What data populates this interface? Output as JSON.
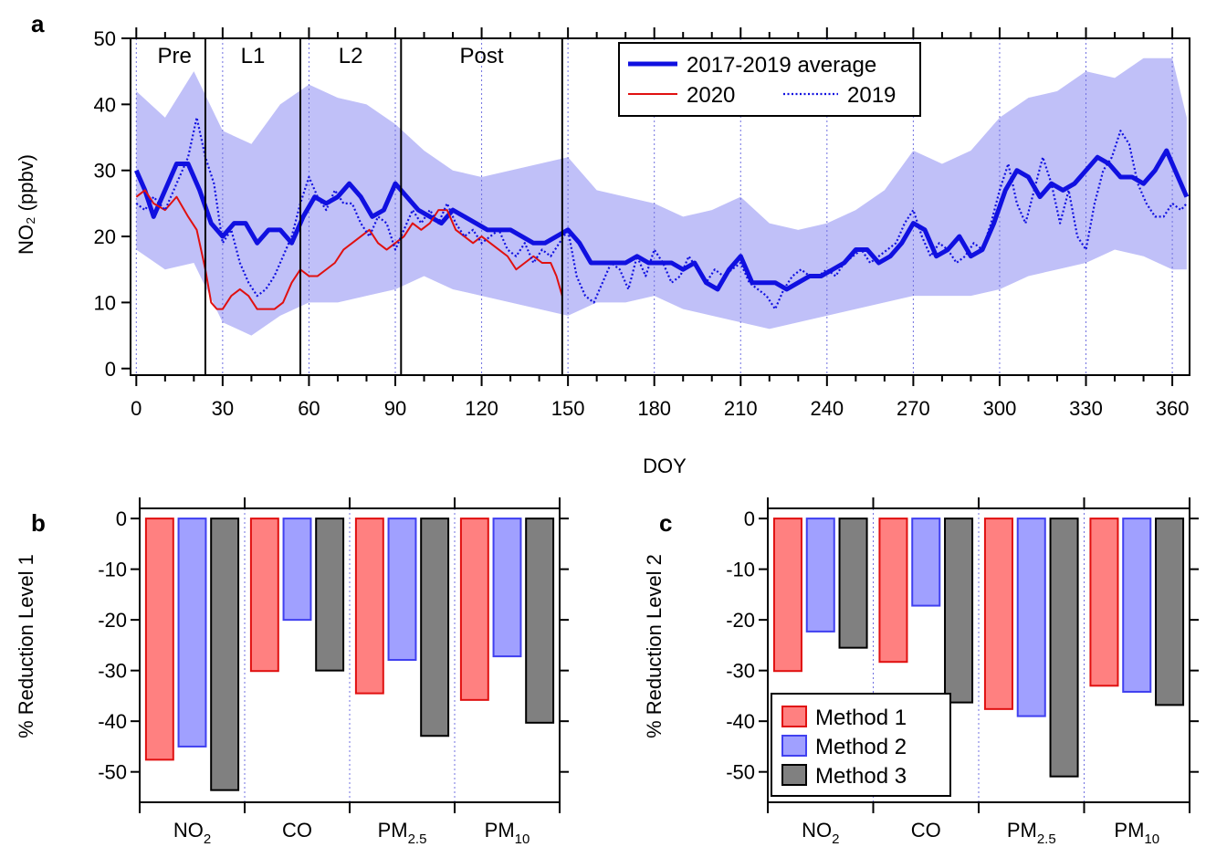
{
  "chart_data": [
    {
      "panel": "a",
      "type": "line",
      "xlabel": "DOY",
      "ylabel": "NO₂ (ppbv)",
      "xlim": [
        -2,
        366
      ],
      "ylim": [
        -1,
        50
      ],
      "xticks": [
        0,
        30,
        60,
        90,
        120,
        150,
        180,
        210,
        240,
        270,
        300,
        330,
        360
      ],
      "yticks": [
        0,
        10,
        20,
        30,
        40,
        50
      ],
      "period_boundaries": [
        24,
        57,
        92,
        148
      ],
      "periods": [
        "Pre",
        "L1",
        "L2",
        "Post"
      ],
      "grid": "monthly dotted vertical lines",
      "legend": "top-center",
      "band": {
        "name": "2017-2019 range",
        "x": [
          0,
          10,
          20,
          30,
          40,
          50,
          60,
          70,
          80,
          90,
          100,
          110,
          120,
          130,
          140,
          150,
          160,
          170,
          180,
          190,
          200,
          210,
          220,
          230,
          240,
          250,
          260,
          270,
          280,
          290,
          300,
          310,
          320,
          330,
          340,
          350,
          360,
          365
        ],
        "upper": [
          42,
          38,
          45,
          36,
          34,
          40,
          43,
          41,
          40,
          37,
          33,
          30,
          29,
          30,
          31,
          32,
          27,
          26,
          25,
          23,
          24,
          26,
          22,
          21,
          22,
          24,
          27,
          33,
          31,
          33,
          38,
          41,
          42,
          45,
          44,
          47,
          47,
          38
        ],
        "lower": [
          18,
          15,
          16,
          7,
          5,
          8,
          10,
          10,
          11,
          12,
          14,
          12,
          11,
          10,
          9,
          8,
          10,
          10,
          11,
          9,
          8,
          7,
          6,
          7,
          8,
          9,
          10,
          11,
          11,
          11,
          12,
          14,
          15,
          16,
          18,
          17,
          15,
          15
        ]
      },
      "series": [
        {
          "name": "2017-2019 average",
          "color": "#1010e0",
          "x": [
            0,
            3,
            6,
            10,
            14,
            18,
            22,
            26,
            30,
            34,
            38,
            42,
            46,
            50,
            54,
            58,
            62,
            66,
            70,
            74,
            78,
            82,
            86,
            90,
            94,
            98,
            102,
            106,
            110,
            114,
            118,
            122,
            126,
            130,
            134,
            138,
            142,
            146,
            150,
            154,
            158,
            162,
            166,
            170,
            174,
            178,
            182,
            186,
            190,
            194,
            198,
            202,
            206,
            210,
            214,
            218,
            222,
            226,
            230,
            234,
            238,
            242,
            246,
            250,
            254,
            258,
            262,
            266,
            270,
            274,
            278,
            282,
            286,
            290,
            294,
            298,
            302,
            306,
            310,
            314,
            318,
            322,
            326,
            330,
            334,
            338,
            342,
            346,
            350,
            354,
            358,
            362,
            365
          ],
          "y": [
            30,
            27,
            23,
            27,
            31,
            31,
            27,
            22,
            20,
            22,
            22,
            19,
            21,
            21,
            19,
            23,
            26,
            25,
            26,
            28,
            26,
            23,
            24,
            28,
            26,
            24,
            23,
            22,
            24,
            23,
            22,
            21,
            21,
            21,
            20,
            19,
            19,
            20,
            21,
            19,
            16,
            16,
            16,
            16,
            17,
            16,
            16,
            16,
            15,
            16,
            13,
            12,
            15,
            17,
            13,
            13,
            13,
            12,
            13,
            14,
            14,
            15,
            16,
            18,
            18,
            16,
            17,
            19,
            22,
            21,
            17,
            18,
            20,
            17,
            18,
            22,
            27,
            30,
            29,
            26,
            28,
            27,
            28,
            30,
            32,
            31,
            29,
            29,
            28,
            30,
            33,
            29,
            26
          ]
        },
        {
          "name": "2020",
          "color": "#e01010",
          "x": [
            0,
            3,
            6,
            10,
            14,
            18,
            21,
            24,
            26,
            28,
            30,
            33,
            36,
            39,
            42,
            45,
            48,
            51,
            54,
            57,
            60,
            63,
            66,
            69,
            72,
            75,
            78,
            81,
            84,
            87,
            90,
            93,
            96,
            99,
            102,
            105,
            108,
            111,
            114,
            117,
            120,
            123,
            126,
            129,
            132,
            135,
            138,
            141,
            144,
            146,
            148
          ],
          "y": [
            26,
            27,
            25,
            24,
            26,
            23,
            21,
            15,
            10,
            9,
            9,
            11,
            12,
            11,
            9,
            9,
            9,
            10,
            13,
            15,
            14,
            14,
            15,
            16,
            18,
            19,
            20,
            21,
            19,
            18,
            19,
            20,
            22,
            21,
            22,
            24,
            24,
            21,
            20,
            19,
            20,
            19,
            18,
            17,
            15,
            16,
            17,
            16,
            16,
            14,
            11
          ]
        },
        {
          "name": "2019",
          "color": "#1010e0",
          "x": [
            0,
            3,
            6,
            10,
            14,
            18,
            21,
            24,
            27,
            30,
            33,
            36,
            39,
            42,
            45,
            48,
            51,
            54,
            57,
            60,
            63,
            66,
            69,
            72,
            75,
            78,
            81,
            84,
            87,
            90,
            93,
            96,
            99,
            102,
            105,
            108,
            111,
            114,
            117,
            120,
            123,
            126,
            129,
            132,
            135,
            138,
            141,
            144,
            147,
            150,
            153,
            156,
            159,
            162,
            165,
            168,
            171,
            174,
            177,
            180,
            183,
            186,
            189,
            192,
            195,
            198,
            201,
            204,
            207,
            210,
            213,
            216,
            219,
            222,
            225,
            228,
            231,
            234,
            237,
            240,
            243,
            246,
            249,
            252,
            255,
            258,
            261,
            264,
            267,
            270,
            273,
            276,
            279,
            282,
            285,
            288,
            291,
            294,
            297,
            300,
            303,
            306,
            309,
            312,
            315,
            318,
            321,
            324,
            327,
            330,
            333,
            336,
            339,
            342,
            345,
            348,
            351,
            354,
            357,
            360,
            363,
            365
          ],
          "y": [
            25,
            24,
            26,
            24,
            28,
            32,
            38,
            32,
            28,
            19,
            21,
            16,
            13,
            11,
            12,
            14,
            17,
            20,
            25,
            29,
            26,
            24,
            27,
            25,
            25,
            22,
            20,
            23,
            22,
            18,
            21,
            24,
            22,
            24,
            22,
            25,
            22,
            20,
            21,
            19,
            20,
            21,
            18,
            17,
            19,
            16,
            18,
            17,
            19,
            21,
            14,
            11,
            10,
            13,
            16,
            15,
            12,
            17,
            14,
            18,
            16,
            13,
            14,
            17,
            15,
            13,
            15,
            14,
            15,
            16,
            13,
            12,
            11,
            9,
            12,
            14,
            15,
            14,
            14,
            15,
            14,
            16,
            17,
            18,
            16,
            17,
            18,
            19,
            22,
            24,
            20,
            17,
            19,
            18,
            16,
            17,
            19,
            18,
            22,
            27,
            31,
            25,
            22,
            27,
            32,
            28,
            22,
            27,
            20,
            18,
            25,
            30,
            32,
            36,
            34,
            28,
            25,
            23,
            23,
            25,
            24,
            25
          ]
        }
      ],
      "legend_labels": [
        "2017-2019 average",
        "2020",
        "2019"
      ]
    },
    {
      "panel": "b",
      "type": "bar",
      "ylabel": "% Reduction Level 1",
      "ylim": [
        -56,
        2
      ],
      "yticks": [
        0,
        -10,
        -20,
        -30,
        -40,
        -50
      ],
      "categories": [
        {
          "base": "NO",
          "sub": "2"
        },
        {
          "base": "CO",
          "sub": ""
        },
        {
          "base": "PM",
          "sub": "2.5"
        },
        {
          "base": "PM",
          "sub": "10"
        }
      ],
      "series": [
        {
          "name": "Method 1",
          "fill": "#ff8080",
          "stroke": "#e01010",
          "values": [
            -47.6,
            -30.1,
            -34.5,
            -35.8
          ]
        },
        {
          "name": "Method 2",
          "fill": "#a0a0ff",
          "stroke": "#4040f0",
          "values": [
            -45.0,
            -20.0,
            -27.9,
            -27.2
          ]
        },
        {
          "name": "Method 3",
          "fill": "#808080",
          "stroke": "#000000",
          "values": [
            -53.6,
            -30.0,
            -42.9,
            -40.3
          ]
        }
      ]
    },
    {
      "panel": "c",
      "type": "bar",
      "ylabel": "% Reduction Level 2",
      "ylim": [
        -56,
        2
      ],
      "yticks": [
        0,
        -10,
        -20,
        -30,
        -40,
        -50
      ],
      "legend": "bottom-left",
      "categories": [
        {
          "base": "NO",
          "sub": "2"
        },
        {
          "base": "CO",
          "sub": ""
        },
        {
          "base": "PM",
          "sub": "2.5"
        },
        {
          "base": "PM",
          "sub": "10"
        }
      ],
      "series": [
        {
          "name": "Method 1",
          "fill": "#ff8080",
          "stroke": "#e01010",
          "values": [
            -30.1,
            -28.3,
            -37.6,
            -33.0
          ]
        },
        {
          "name": "Method 2",
          "fill": "#a0a0ff",
          "stroke": "#4040f0",
          "values": [
            -22.3,
            -17.2,
            -39.0,
            -34.2
          ]
        },
        {
          "name": "Method 3",
          "fill": "#808080",
          "stroke": "#000000",
          "values": [
            -25.5,
            -36.3,
            -50.9,
            -36.8
          ]
        }
      ]
    }
  ]
}
